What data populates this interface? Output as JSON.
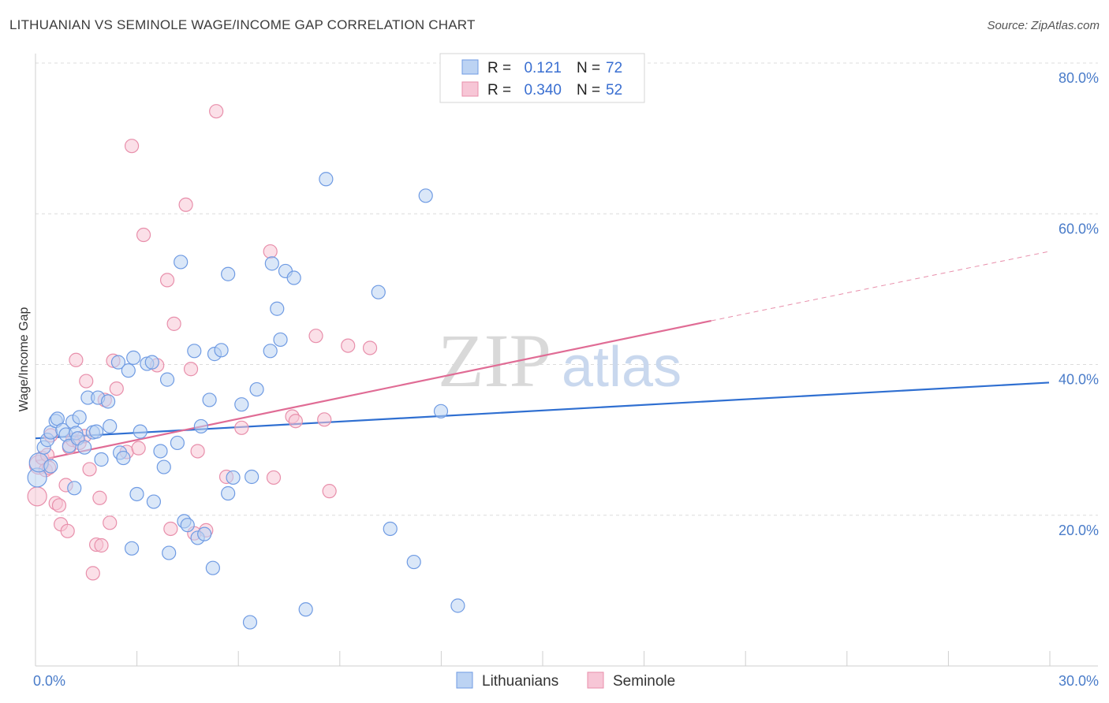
{
  "title": "LITHUANIAN VS SEMINOLE WAGE/INCOME GAP CORRELATION CHART",
  "source": "Source: ZipAtlas.com",
  "watermark": {
    "zip": "ZIP",
    "atlas": "atlas"
  },
  "chart_data": {
    "type": "scatter",
    "title": "LITHUANIAN VS SEMINOLE WAGE/INCOME GAP CORRELATION CHART",
    "xlabel": "",
    "ylabel": "Wage/Income Gap",
    "xlim": [
      0,
      30
    ],
    "ylim": [
      0,
      80
    ],
    "x_tick_labels": [
      "0.0%",
      "30.0%"
    ],
    "y_ticks": [
      20,
      40,
      60,
      80
    ],
    "y_tick_labels": [
      "20.0%",
      "40.0%",
      "60.0%",
      "80.0%"
    ],
    "grid": "horizontal dashed",
    "legend_top": {
      "rows": [
        {
          "r_label": "R =",
          "r_value": "0.121",
          "n_label": "N =",
          "n_value": "72"
        },
        {
          "r_label": "R =",
          "r_value": "0.340",
          "n_label": "N =",
          "n_value": "52"
        }
      ]
    },
    "series": [
      {
        "name": "Lithuanians",
        "color": "#6f9be3",
        "fill": "#bcd3f3",
        "r": 0.121,
        "n": 72,
        "trend": {
          "x0": 0,
          "y0": 30.2,
          "x1": 30,
          "y1": 37.6,
          "dashed_from": null
        },
        "points": [
          [
            0.05,
            25.0
          ],
          [
            0.1,
            27.0
          ],
          [
            0.25,
            29.0
          ],
          [
            0.35,
            30.0
          ],
          [
            0.45,
            31.0
          ],
          [
            0.6,
            32.5
          ],
          [
            0.65,
            32.8
          ],
          [
            0.8,
            31.3
          ],
          [
            0.9,
            30.7
          ],
          [
            1.0,
            29.2
          ],
          [
            1.1,
            32.4
          ],
          [
            1.2,
            30.9
          ],
          [
            1.25,
            30.2
          ],
          [
            1.15,
            23.6
          ],
          [
            1.45,
            29.0
          ],
          [
            1.3,
            33.0
          ],
          [
            1.55,
            35.6
          ],
          [
            1.7,
            31.0
          ],
          [
            1.8,
            31.1
          ],
          [
            1.85,
            35.6
          ],
          [
            1.95,
            27.4
          ],
          [
            2.2,
            31.8
          ],
          [
            2.15,
            35.1
          ],
          [
            2.45,
            40.3
          ],
          [
            2.5,
            28.3
          ],
          [
            2.6,
            27.6
          ],
          [
            2.75,
            39.2
          ],
          [
            2.9,
            40.9
          ],
          [
            2.85,
            15.6
          ],
          [
            3.0,
            22.8
          ],
          [
            3.1,
            31.1
          ],
          [
            3.3,
            40.1
          ],
          [
            3.45,
            40.3
          ],
          [
            3.5,
            21.8
          ],
          [
            3.7,
            28.5
          ],
          [
            3.8,
            26.4
          ],
          [
            3.9,
            38.0
          ],
          [
            3.95,
            15.0
          ],
          [
            4.2,
            29.6
          ],
          [
            4.3,
            53.6
          ],
          [
            4.4,
            19.2
          ],
          [
            4.5,
            18.7
          ],
          [
            4.7,
            41.8
          ],
          [
            4.8,
            17.0
          ],
          [
            4.9,
            31.8
          ],
          [
            5.0,
            17.5
          ],
          [
            5.15,
            35.3
          ],
          [
            5.25,
            13.0
          ],
          [
            5.3,
            41.4
          ],
          [
            5.5,
            41.9
          ],
          [
            5.7,
            22.9
          ],
          [
            5.7,
            52.0
          ],
          [
            5.85,
            25.0
          ],
          [
            6.1,
            34.7
          ],
          [
            6.35,
            5.8
          ],
          [
            6.4,
            25.1
          ],
          [
            6.55,
            36.7
          ],
          [
            6.95,
            41.8
          ],
          [
            7.15,
            47.4
          ],
          [
            7.0,
            53.4
          ],
          [
            7.25,
            43.3
          ],
          [
            7.4,
            52.4
          ],
          [
            7.65,
            51.5
          ],
          [
            8.0,
            7.5
          ],
          [
            8.6,
            64.6
          ],
          [
            10.15,
            49.6
          ],
          [
            10.5,
            18.2
          ],
          [
            11.2,
            13.8
          ],
          [
            11.55,
            62.4
          ],
          [
            12.0,
            33.8
          ],
          [
            12.5,
            8.0
          ],
          [
            0.45,
            26.5
          ]
        ]
      },
      {
        "name": "Seminole",
        "color": "#e88fab",
        "fill": "#f7c6d6",
        "r": 0.34,
        "n": 52,
        "trend": {
          "x0": 0,
          "y0": 27.2,
          "x1": 20.0,
          "y1": 45.8,
          "dashed_to_x": 30,
          "dashed_to_y": 55.0
        },
        "points": [
          [
            0.05,
            22.5
          ],
          [
            0.1,
            26.7
          ],
          [
            0.2,
            27.6
          ],
          [
            0.3,
            26.0
          ],
          [
            0.4,
            26.3
          ],
          [
            0.45,
            30.6
          ],
          [
            0.6,
            21.6
          ],
          [
            0.7,
            21.3
          ],
          [
            0.75,
            18.8
          ],
          [
            0.9,
            24.0
          ],
          [
            0.95,
            17.9
          ],
          [
            1.0,
            29.0
          ],
          [
            1.1,
            30.0
          ],
          [
            1.2,
            40.6
          ],
          [
            1.3,
            29.6
          ],
          [
            1.45,
            30.5
          ],
          [
            1.5,
            37.8
          ],
          [
            1.6,
            26.1
          ],
          [
            1.7,
            12.3
          ],
          [
            1.8,
            16.1
          ],
          [
            1.9,
            22.3
          ],
          [
            1.95,
            16.0
          ],
          [
            2.05,
            35.3
          ],
          [
            2.2,
            19.0
          ],
          [
            2.3,
            40.5
          ],
          [
            2.4,
            36.8
          ],
          [
            2.7,
            28.4
          ],
          [
            2.85,
            69.0
          ],
          [
            3.05,
            28.9
          ],
          [
            3.2,
            57.2
          ],
          [
            3.6,
            39.9
          ],
          [
            3.9,
            51.2
          ],
          [
            4.0,
            18.2
          ],
          [
            4.1,
            45.4
          ],
          [
            4.45,
            61.2
          ],
          [
            4.6,
            39.4
          ],
          [
            4.7,
            17.6
          ],
          [
            4.8,
            28.5
          ],
          [
            5.05,
            18.0
          ],
          [
            5.35,
            73.6
          ],
          [
            5.65,
            25.1
          ],
          [
            6.1,
            31.6
          ],
          [
            6.95,
            55.0
          ],
          [
            7.05,
            25.0
          ],
          [
            7.6,
            33.1
          ],
          [
            7.7,
            32.5
          ],
          [
            8.3,
            43.8
          ],
          [
            8.55,
            32.7
          ],
          [
            8.7,
            23.2
          ],
          [
            9.25,
            42.5
          ],
          [
            9.9,
            42.2
          ],
          [
            0.35,
            28.0
          ]
        ]
      }
    ]
  },
  "bottom_legend": [
    {
      "label": "Lithuanians",
      "color": "#bcd3f3",
      "stroke": "#6f9be3"
    },
    {
      "label": "Seminole",
      "color": "#f7c6d6",
      "stroke": "#e88fab"
    }
  ]
}
